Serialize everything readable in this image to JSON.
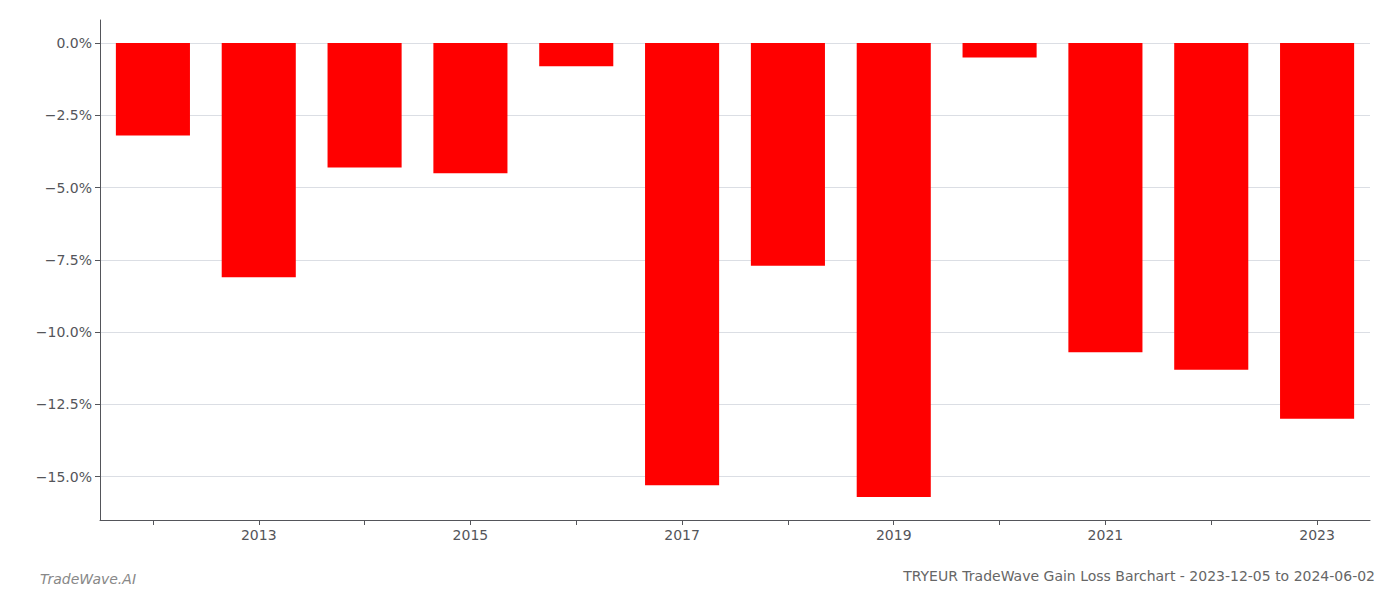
{
  "chart_data": {
    "type": "bar",
    "title": "TRYEUR TradeWave Gain Loss Barchart - 2023-12-05 to 2024-06-02",
    "annotations": [
      "TradeWave.AI"
    ],
    "categories": [
      null,
      "2013",
      null,
      "2015",
      null,
      "2017",
      null,
      "2019",
      null,
      "2021",
      null,
      "2023"
    ],
    "values": [
      -3.2,
      -8.1,
      -4.3,
      -4.5,
      -0.8,
      -15.3,
      -7.7,
      -15.7,
      -0.5,
      -10.7,
      -11.3,
      -13.0
    ],
    "color": "#ff0000",
    "ylim": [
      -16.5,
      0.8
    ],
    "yticks": [
      {
        "value": 0.0,
        "label": "0.0%"
      },
      {
        "value": -2.5,
        "label": "−2.5%"
      },
      {
        "value": -5.0,
        "label": "−5.0%"
      },
      {
        "value": -7.5,
        "label": "−7.5%"
      },
      {
        "value": -10.0,
        "label": "−10.0%"
      },
      {
        "value": -12.5,
        "label": "−12.5%"
      },
      {
        "value": -15.0,
        "label": "−15.0%"
      }
    ],
    "grid": true
  }
}
